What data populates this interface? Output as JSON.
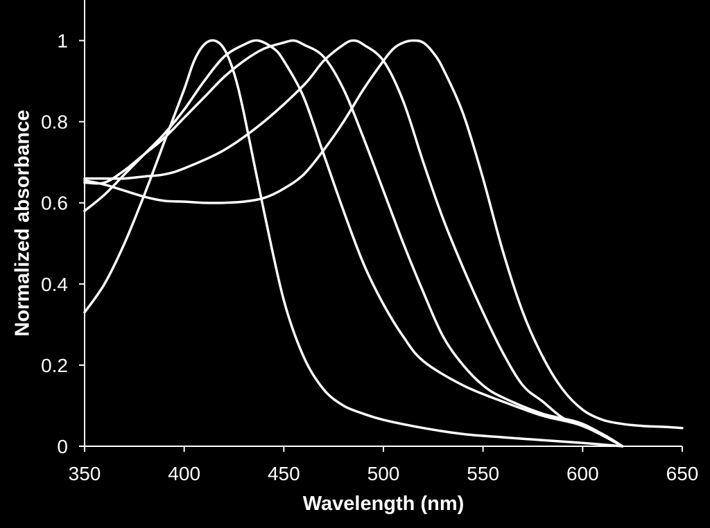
{
  "chart_data": {
    "type": "line",
    "title": "",
    "xlabel": "Wavelength (nm)",
    "ylabel": "Normalized absorbance",
    "xlim": [
      350,
      650
    ],
    "ylim": [
      0,
      1.1
    ],
    "xticks": [
      350,
      400,
      450,
      500,
      550,
      600,
      650
    ],
    "yticks": [
      0,
      0.2,
      0.4,
      0.6,
      0.8,
      1
    ],
    "ytick_labels": [
      "0",
      "0.2",
      "0.4",
      "0.6",
      "0.8",
      "1"
    ],
    "grid": false,
    "legend": "none",
    "colors": {
      "background": "#000000",
      "line": "#ffffff",
      "axis": "#ffffff",
      "text": "#ffffff"
    },
    "series": [
      {
        "x": [
          350,
          360,
          370,
          380,
          390,
          400,
          405,
          410,
          415,
          420,
          425,
          430,
          440,
          450,
          460,
          470,
          480,
          490,
          500,
          520,
          540,
          560,
          580,
          600,
          620
        ],
        "y": [
          0.33,
          0.4,
          0.5,
          0.62,
          0.75,
          0.88,
          0.95,
          0.99,
          1.0,
          0.98,
          0.92,
          0.82,
          0.58,
          0.36,
          0.22,
          0.14,
          0.1,
          0.08,
          0.065,
          0.045,
          0.03,
          0.022,
          0.015,
          0.008,
          0.0
        ]
      },
      {
        "x": [
          350,
          360,
          370,
          380,
          390,
          400,
          410,
          420,
          430,
          437,
          445,
          450,
          460,
          470,
          480,
          490,
          500,
          510,
          520,
          540,
          560,
          580,
          600,
          620
        ],
        "y": [
          0.58,
          0.62,
          0.67,
          0.72,
          0.77,
          0.83,
          0.9,
          0.96,
          0.99,
          1.0,
          0.98,
          0.95,
          0.86,
          0.72,
          0.58,
          0.45,
          0.35,
          0.27,
          0.21,
          0.15,
          0.11,
          0.075,
          0.05,
          0.0
        ]
      },
      {
        "x": [
          350,
          360,
          370,
          380,
          390,
          400,
          410,
          420,
          430,
          440,
          450,
          455,
          460,
          470,
          480,
          490,
          500,
          510,
          520,
          530,
          540,
          550,
          560,
          580,
          600,
          620
        ],
        "y": [
          0.65,
          0.65,
          0.68,
          0.72,
          0.76,
          0.81,
          0.86,
          0.91,
          0.95,
          0.98,
          0.995,
          1.0,
          0.99,
          0.96,
          0.88,
          0.76,
          0.63,
          0.5,
          0.38,
          0.27,
          0.2,
          0.15,
          0.12,
          0.08,
          0.055,
          0.0
        ]
      },
      {
        "x": [
          350,
          360,
          370,
          380,
          390,
          400,
          420,
          440,
          460,
          470,
          480,
          485,
          490,
          500,
          510,
          520,
          530,
          540,
          550,
          560,
          570,
          580,
          590,
          600,
          610,
          620
        ],
        "y": [
          0.66,
          0.66,
          0.66,
          0.665,
          0.67,
          0.685,
          0.73,
          0.8,
          0.89,
          0.95,
          0.99,
          1.0,
          0.99,
          0.95,
          0.85,
          0.7,
          0.56,
          0.44,
          0.33,
          0.23,
          0.15,
          0.11,
          0.07,
          0.05,
          0.03,
          0.0
        ]
      },
      {
        "x": [
          350,
          360,
          370,
          380,
          390,
          400,
          410,
          420,
          430,
          440,
          450,
          460,
          470,
          480,
          490,
          500,
          505,
          510,
          515,
          520,
          525,
          530,
          540,
          550,
          560,
          570,
          580,
          590,
          600,
          610,
          620,
          630,
          640,
          650
        ],
        "y": [
          0.655,
          0.645,
          0.63,
          0.615,
          0.605,
          0.603,
          0.6,
          0.6,
          0.603,
          0.612,
          0.635,
          0.67,
          0.73,
          0.8,
          0.88,
          0.95,
          0.98,
          0.995,
          1.0,
          0.995,
          0.97,
          0.93,
          0.82,
          0.66,
          0.48,
          0.33,
          0.22,
          0.14,
          0.09,
          0.065,
          0.055,
          0.05,
          0.048,
          0.045
        ]
      }
    ]
  }
}
